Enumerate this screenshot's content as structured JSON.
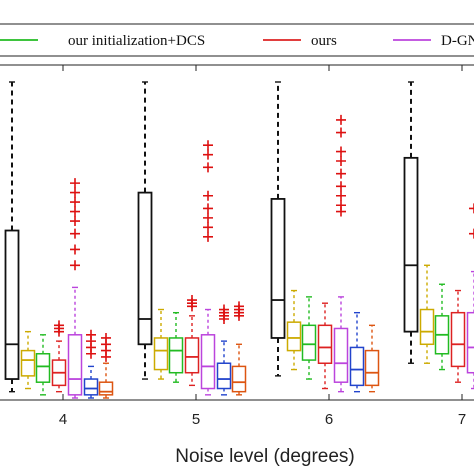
{
  "chart_data": {
    "type": "box",
    "xlabel": "Noise level (degrees)",
    "ylabel": "",
    "title": "",
    "categories": [
      "4",
      "5",
      "6",
      "7"
    ],
    "ylim": [
      0,
      100
    ],
    "grid": false,
    "legend_position": "top",
    "legend": [
      {
        "label": "our initialization+DCS",
        "color": "#22bb22"
      },
      {
        "label": "ours",
        "color": "#dd2222"
      },
      {
        "label": "D-GNC",
        "color": "#bb44dd"
      }
    ],
    "series": [
      {
        "color": "#111111",
        "boxes": [
          {
            "min": 2,
            "q1": 6,
            "median": 17,
            "q3": 53,
            "max": 100,
            "outliers": []
          },
          {
            "min": 6,
            "q1": 17,
            "median": 25,
            "q3": 65,
            "max": 100,
            "outliers": []
          },
          {
            "min": 7,
            "q1": 19,
            "median": 31,
            "q3": 63,
            "max": 100,
            "outliers": []
          },
          {
            "min": 11,
            "q1": 21,
            "median": 42,
            "q3": 76,
            "max": 100,
            "outliers": []
          }
        ]
      },
      {
        "color": "#ccaa00",
        "boxes": [
          {
            "min": 3,
            "q1": 7,
            "median": 12,
            "q3": 15,
            "max": 21,
            "outliers": []
          },
          {
            "min": 6,
            "q1": 9,
            "median": 15,
            "q3": 19,
            "max": 28,
            "outliers": []
          },
          {
            "min": 9,
            "q1": 15,
            "median": 19,
            "q3": 24,
            "max": 34,
            "outliers": []
          },
          {
            "min": 11,
            "q1": 17,
            "median": 21,
            "q3": 28,
            "max": 42,
            "outliers": []
          }
        ]
      },
      {
        "color": "#22bb22",
        "boxes": [
          {
            "min": 1,
            "q1": 5,
            "median": 10,
            "q3": 14,
            "max": 20,
            "outliers": []
          },
          {
            "min": 5,
            "q1": 8,
            "median": 15,
            "q3": 19,
            "max": 27,
            "outliers": []
          },
          {
            "min": 6,
            "q1": 12,
            "median": 17,
            "q3": 23,
            "max": 32,
            "outliers": []
          },
          {
            "min": 9,
            "q1": 14,
            "median": 20,
            "q3": 26,
            "max": 36,
            "outliers": []
          }
        ]
      },
      {
        "color": "#dd2222",
        "boxes": [
          {
            "min": 2,
            "q1": 4,
            "median": 8,
            "q3": 12,
            "max": 18,
            "outliers": [
              21,
              22,
              23
            ]
          },
          {
            "min": 4,
            "q1": 8,
            "median": 13,
            "q3": 19,
            "max": 26,
            "outliers": [
              29,
              30,
              31
            ]
          },
          {
            "min": 3,
            "q1": 11,
            "median": 16,
            "q3": 23,
            "max": 30,
            "outliers": []
          },
          {
            "min": 5,
            "q1": 10,
            "median": 17,
            "q3": 27,
            "max": 34,
            "outliers": []
          }
        ]
      },
      {
        "color": "#bb44dd",
        "boxes": [
          {
            "min": 0,
            "q1": 1,
            "median": 6,
            "q3": 20,
            "max": 35,
            "outliers": [
              42,
              47,
              52,
              56,
              59,
              62,
              65,
              68
            ]
          },
          {
            "min": 1,
            "q1": 3,
            "median": 10,
            "q3": 20,
            "max": 28,
            "outliers": [
              51,
              54,
              57,
              60,
              64,
              73,
              77,
              80
            ]
          },
          {
            "min": 2,
            "q1": 5,
            "median": 11,
            "q3": 22,
            "max": 32,
            "outliers": [
              59,
              61,
              64,
              67,
              71,
              75,
              78,
              84,
              88
            ]
          },
          {
            "min": 3,
            "q1": 8,
            "median": 16,
            "q3": 27,
            "max": 40,
            "outliers": [
              52,
              60
            ]
          }
        ]
      },
      {
        "color": "#2244cc",
        "boxes": [
          {
            "min": 0,
            "q1": 1,
            "median": 3,
            "q3": 6,
            "max": 10,
            "outliers": [
              14,
              16,
              18,
              20
            ]
          },
          {
            "min": 1,
            "q1": 3,
            "median": 6,
            "q3": 11,
            "max": 18,
            "outliers": [
              25,
              26,
              27,
              28
            ]
          },
          {
            "min": 2,
            "q1": 4,
            "median": 9,
            "q3": 16,
            "max": 27,
            "outliers": []
          },
          {
            "min": 3,
            "q1": 6,
            "median": 12,
            "q3": 20,
            "max": 30,
            "outliers": []
          }
        ]
      },
      {
        "color": "#dd5511",
        "boxes": [
          {
            "min": 0,
            "q1": 1,
            "median": 2,
            "q3": 5,
            "max": 11,
            "outliers": [
              13,
              15,
              17,
              19
            ]
          },
          {
            "min": 1,
            "q1": 2,
            "median": 5,
            "q3": 10,
            "max": 17,
            "outliers": [
              26,
              27,
              28,
              29
            ]
          },
          {
            "min": 2,
            "q1": 4,
            "median": 8,
            "q3": 15,
            "max": 23,
            "outliers": []
          },
          {
            "min": 3,
            "q1": 6,
            "median": 11,
            "q3": 18,
            "max": 27,
            "outliers": []
          }
        ]
      }
    ]
  }
}
